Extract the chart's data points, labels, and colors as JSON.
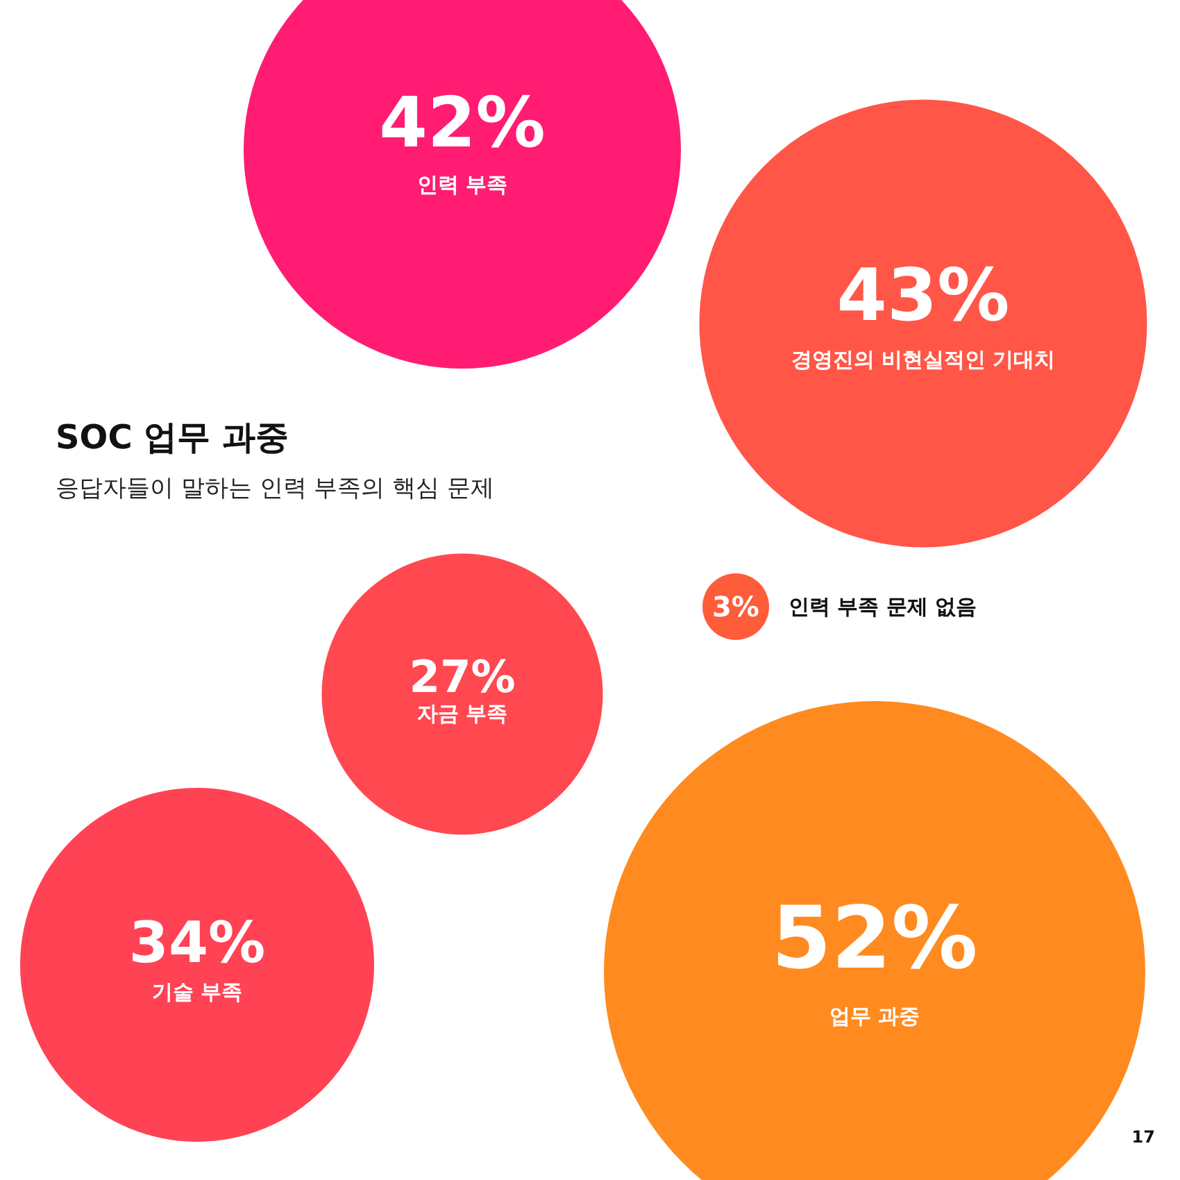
{
  "chart_data": {
    "type": "other",
    "title": "SOC 업무 과중",
    "subtitle": "응답자들이 말하는 인력 부족의 핵심 문제",
    "categories": [
      "인력 부족",
      "경영진의 비현실적인 기대치",
      "인력 부족 문제 없음",
      "자금 부족",
      "기술 부족",
      "업무 과중"
    ],
    "values": [
      42,
      43,
      3,
      27,
      34,
      52
    ],
    "value_labels": [
      "42%",
      "43%",
      "3%",
      "27%",
      "34%",
      "52%"
    ],
    "colors": [
      "#ff1c72",
      "#ff5648",
      "#ff5c3a",
      "#ff4850",
      "#ff4254",
      "#ff8a20"
    ],
    "annotations": [
      "17"
    ]
  }
}
